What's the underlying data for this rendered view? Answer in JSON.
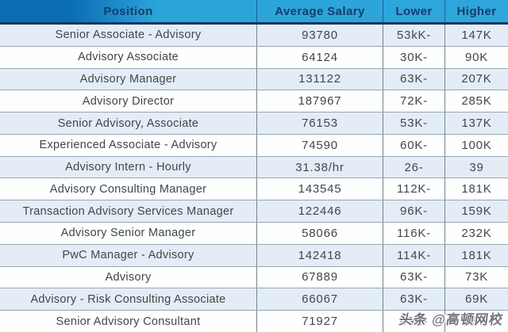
{
  "table": {
    "columns": [
      "Position",
      "Average Salary",
      "Lower",
      "Higher"
    ],
    "rows": [
      {
        "position": "Senior Associate - Advisory",
        "avg": "93780",
        "lower": "53kK-",
        "higher": "147K"
      },
      {
        "position": "Advisory Associate",
        "avg": "64124",
        "lower": "30K-",
        "higher": "90K"
      },
      {
        "position": "Advisory Manager",
        "avg": "131122",
        "lower": "63K-",
        "higher": "207K"
      },
      {
        "position": "Advisory Director",
        "avg": "187967",
        "lower": "72K-",
        "higher": "285K"
      },
      {
        "position": "Senior Advisory, Associate",
        "avg": "76153",
        "lower": "53K-",
        "higher": "137K"
      },
      {
        "position": "Experienced Associate - Advisory",
        "avg": "74590",
        "lower": "60K-",
        "higher": "100K"
      },
      {
        "position": "Advisory Intern - Hourly",
        "avg": "31.38/hr",
        "lower": "26-",
        "higher": "39"
      },
      {
        "position": "Advisory Consulting Manager",
        "avg": "143545",
        "lower": "112K-",
        "higher": "181K"
      },
      {
        "position": "Transaction Advisory Services Manager",
        "avg": "122446",
        "lower": "96K-",
        "higher": "159K"
      },
      {
        "position": "Advisory Senior Manager",
        "avg": "58066",
        "lower": "116K-",
        "higher": "232K"
      },
      {
        "position": "PwC Manager - Advisory",
        "avg": "142418",
        "lower": "114K-",
        "higher": "181K"
      },
      {
        "position": "Advisory",
        "avg": "67889",
        "lower": "63K-",
        "higher": "73K"
      },
      {
        "position": "Advisory - Risk Consulting Associate",
        "avg": "66067",
        "lower": "63K-",
        "higher": "69K"
      },
      {
        "position": "Senior Advisory Consultant",
        "avg": "71927",
        "lower": "69K-",
        "higher": "75K"
      }
    ]
  },
  "watermark": {
    "text": "头条 @高顿网校"
  },
  "colors": {
    "header_gradient_left": "#0b6eb4",
    "header_gradient_right": "#2ea6dc",
    "header_text": "#173c6b",
    "header_bottom_border": "#17365d",
    "row_stripe": "#e4edf6",
    "row_plain": "#fdfefe",
    "row_separator": "#97a6b4",
    "column_separator": "#76858f",
    "body_text": "#41464b"
  }
}
